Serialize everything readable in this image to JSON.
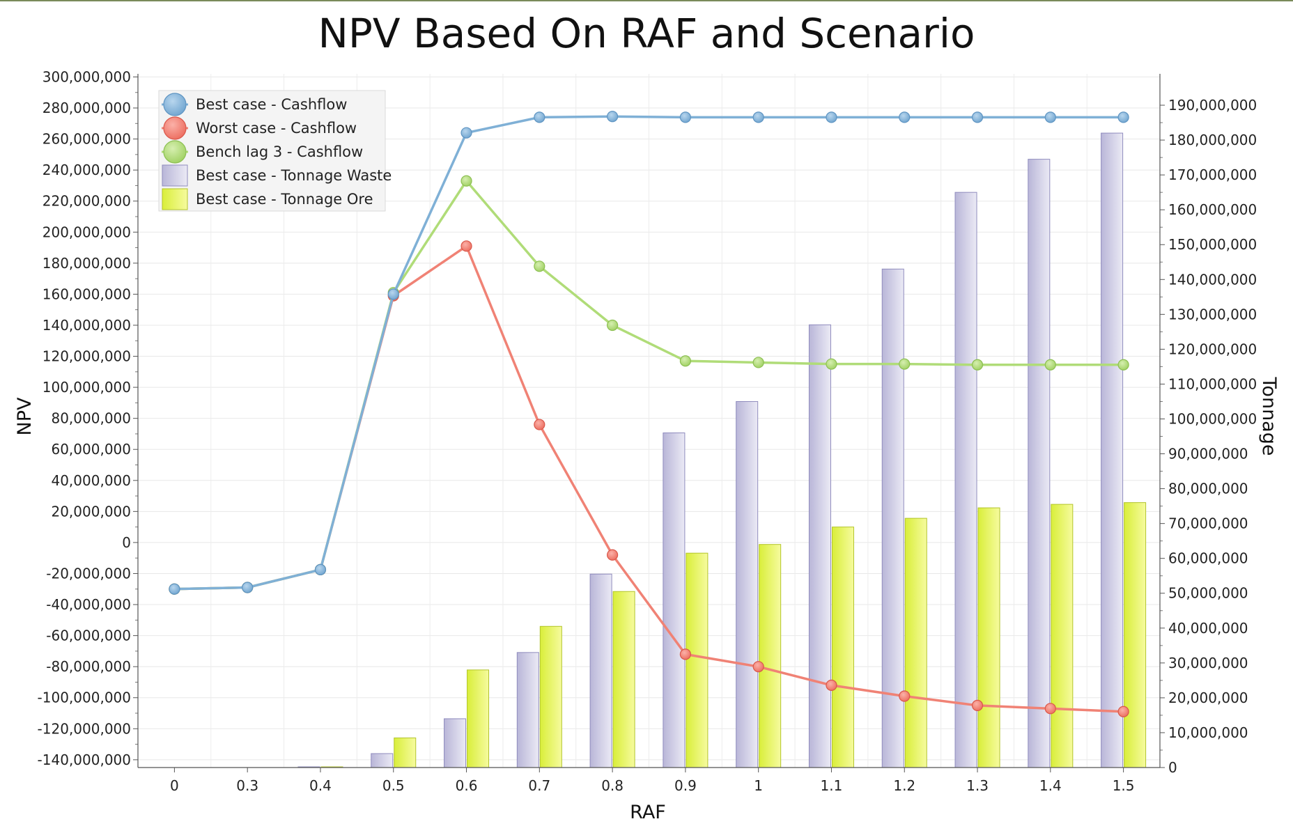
{
  "chart_data": {
    "type": "bar",
    "title": "NPV Based On RAF and Scenario",
    "xlabel": "RAF",
    "ylabel": "NPV",
    "y2label": "Tonnage",
    "categories": [
      "0",
      "0.3",
      "0.4",
      "0.5",
      "0.6",
      "0.7",
      "0.8",
      "0.9",
      "1",
      "1.1",
      "1.2",
      "1.3",
      "1.4",
      "1.5"
    ],
    "ylim": [
      -145000000,
      302000000
    ],
    "yticks": [
      -140000000,
      -120000000,
      -100000000,
      -80000000,
      -60000000,
      -40000000,
      -20000000,
      0,
      20000000,
      40000000,
      60000000,
      80000000,
      100000000,
      120000000,
      140000000,
      160000000,
      180000000,
      200000000,
      220000000,
      240000000,
      260000000,
      280000000,
      300000000
    ],
    "ytick_labels": [
      "-140,000,000",
      "-120,000,000",
      "-100,000,000",
      "-80,000,000",
      "-60,000,000",
      "-40,000,000",
      "-20,000,000",
      "0",
      "20,000,000",
      "40,000,000",
      "60,000,000",
      "80,000,000",
      "100,000,000",
      "120,000,000",
      "140,000,000",
      "160,000,000",
      "180,000,000",
      "200,000,000",
      "220,000,000",
      "240,000,000",
      "260,000,000",
      "280,000,000",
      "300,000,000"
    ],
    "y2lim": [
      0,
      199000000
    ],
    "y2ticks": [
      0,
      10000000,
      20000000,
      30000000,
      40000000,
      50000000,
      60000000,
      70000000,
      80000000,
      90000000,
      100000000,
      110000000,
      120000000,
      130000000,
      140000000,
      150000000,
      160000000,
      170000000,
      180000000,
      190000000
    ],
    "y2tick_labels": [
      "0",
      "10,000,000",
      "20,000,000",
      "30,000,000",
      "40,000,000",
      "50,000,000",
      "60,000,000",
      "70,000,000",
      "80,000,000",
      "90,000,000",
      "100,000,000",
      "110,000,000",
      "120,000,000",
      "130,000,000",
      "140,000,000",
      "150,000,000",
      "160,000,000",
      "170,000,000",
      "180,000,000",
      "190,000,000"
    ],
    "grid": true,
    "legend_position": "top-left",
    "series": [
      {
        "name": "Best case - Cashflow",
        "kind": "line",
        "axis": "left",
        "color": "#7fb0d6",
        "values": [
          -30000000,
          -29000000,
          -17500000,
          160000000,
          264000000,
          274000000,
          274500000,
          274000000,
          274000000,
          274000000,
          274000000,
          274000000,
          274000000,
          274000000
        ]
      },
      {
        "name": "Worst case - Cashflow",
        "kind": "line",
        "axis": "left",
        "color": "#f08275",
        "values": [
          -30000000,
          -29000000,
          -17500000,
          159000000,
          191000000,
          76000000,
          -8000000,
          -72000000,
          -80000000,
          -92000000,
          -99000000,
          -105000000,
          -107000000,
          -109000000
        ]
      },
      {
        "name": "Bench lag 3 - Cashflow",
        "kind": "line",
        "axis": "left",
        "color": "#b0dc78",
        "values": [
          -30000000,
          -29000000,
          -17500000,
          161000000,
          233000000,
          178000000,
          140000000,
          117000000,
          116000000,
          115000000,
          115000000,
          114500000,
          114500000,
          114500000
        ]
      },
      {
        "name": "Best case - Tonnage Waste",
        "kind": "bar",
        "axis": "right",
        "color": "#cfcde6",
        "values": [
          0,
          0,
          200000,
          4000000,
          14000000,
          33000000,
          55500000,
          96000000,
          105000000,
          127000000,
          143000000,
          165000000,
          174500000,
          182000000
        ]
      },
      {
        "name": "Best case - Tonnage Ore",
        "kind": "bar",
        "axis": "right",
        "color": "#e8f56a",
        "values": [
          0,
          0,
          200000,
          8500000,
          28000000,
          40500000,
          50500000,
          61500000,
          64000000,
          69000000,
          71500000,
          74500000,
          75500000,
          76000000
        ]
      }
    ]
  }
}
